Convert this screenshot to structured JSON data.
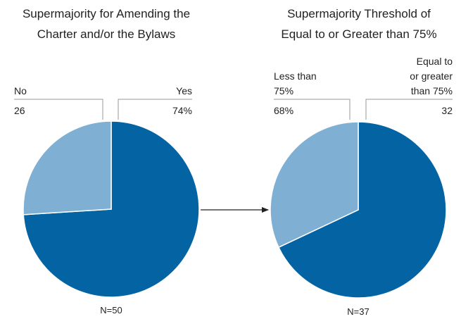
{
  "chart_data": [
    {
      "type": "pie",
      "title_lines": [
        "Supermajority for Amending the",
        "Charter and/or the Bylaws"
      ],
      "categories": [
        "Yes",
        "No"
      ],
      "values": [
        74,
        26
      ],
      "value_labels": [
        "74%",
        "26"
      ],
      "label_lines": [
        [
          "Yes"
        ],
        [
          "No"
        ]
      ],
      "colors": [
        "#0463a3",
        "#7fb0d3"
      ],
      "n_label": "N=50"
    },
    {
      "type": "pie",
      "title_lines": [
        "Supermajority Threshold of",
        "Equal to or Greater than 75%"
      ],
      "categories": [
        "Less than 75%",
        "Equal to or greater than 75%"
      ],
      "values": [
        68,
        32
      ],
      "value_labels": [
        "68%",
        "32"
      ],
      "label_lines": [
        [
          "Less than",
          "75%"
        ],
        [
          "Equal to",
          "or greater",
          "than 75%"
        ]
      ],
      "colors": [
        "#0463a3",
        "#7fb0d3"
      ],
      "n_label": "N=37"
    }
  ]
}
